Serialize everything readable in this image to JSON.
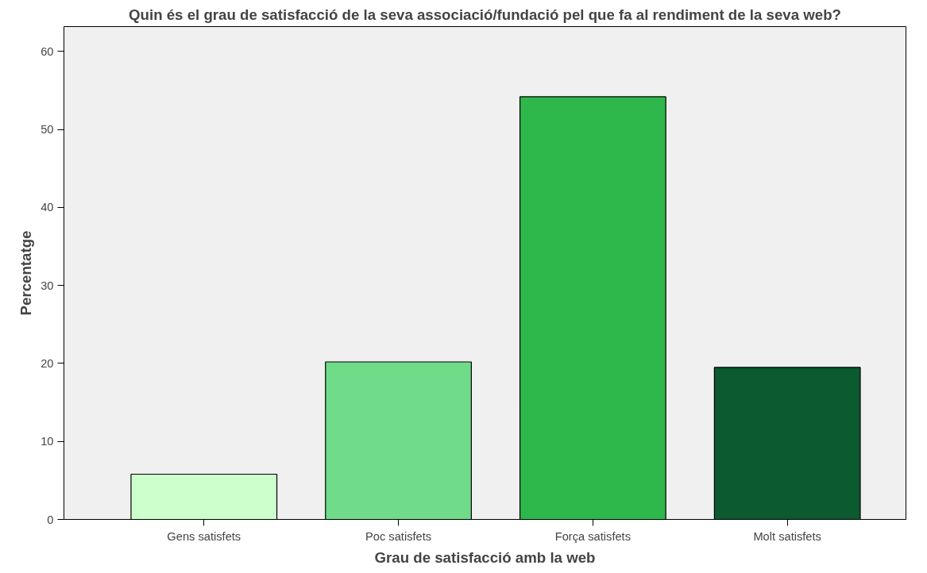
{
  "chart_data": {
    "type": "bar",
    "title": "Quin és el grau de satisfacció de la seva associació/fundació pel que fa al rendiment de la seva web?",
    "xlabel": "Grau de satisfacció amb la web",
    "ylabel": "Percentatge",
    "categories": [
      "Gens satisfets",
      "Poc satisfets",
      "Força satisfets",
      "Molt satisfets"
    ],
    "values": [
      5.8,
      20.2,
      54.2,
      19.5
    ],
    "colors": [
      "#ccffcc",
      "#70db88",
      "#2eb84b",
      "#0b5a30"
    ],
    "ylim": [
      0,
      63.2
    ],
    "yticks": [
      0,
      10,
      20,
      30,
      40,
      50,
      60
    ],
    "grid": false
  }
}
